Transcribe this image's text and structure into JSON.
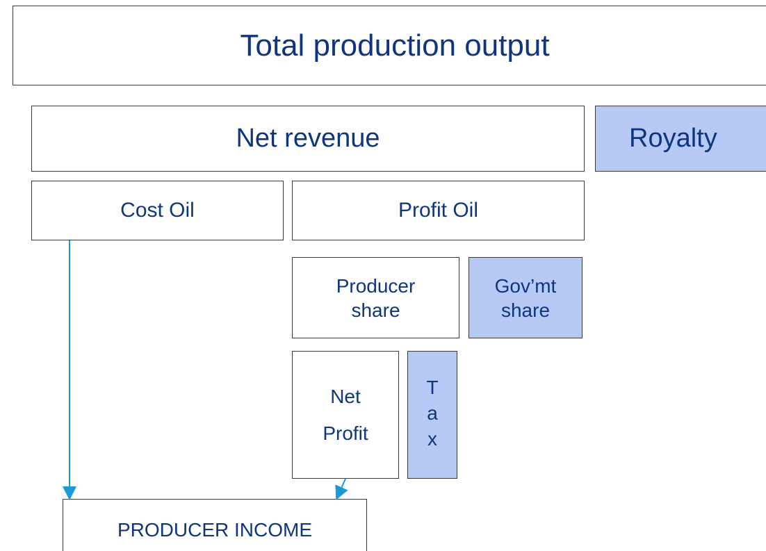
{
  "nodes": [
    {
      "label": "Total production output"
    },
    {
      "label": "Net revenue"
    },
    {
      "label": "Royalty"
    },
    {
      "label": "Cost Oil"
    },
    {
      "label": "Profit Oil"
    },
    {
      "label": "Producer share"
    },
    {
      "label": "Gov’mt share"
    },
    {
      "label": "Net Profit"
    },
    {
      "label": "Tax"
    },
    {
      "label": "PRODUCER INCOME"
    }
  ]
}
